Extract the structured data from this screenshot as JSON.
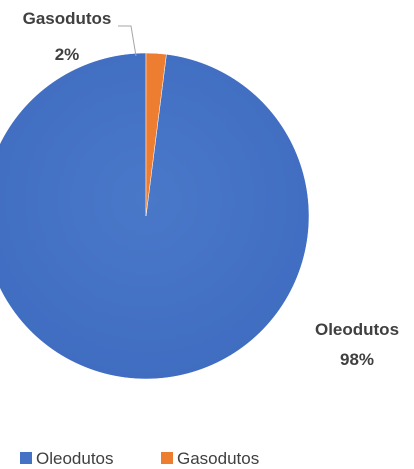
{
  "chart_data": {
    "type": "pie",
    "categories": [
      "Oleodutos",
      "Gasodutos"
    ],
    "values": [
      98,
      2
    ],
    "value_unit": "%",
    "colors": [
      "#4472C4",
      "#ED7D31"
    ],
    "data_labels": [
      {
        "name": "Oleodutos",
        "value": "98%"
      },
      {
        "name": "Gasodutos",
        "value": "2%"
      }
    ],
    "legend": {
      "position": "bottom",
      "entries": [
        "Oleodutos",
        "Gasodutos"
      ]
    },
    "title": ""
  }
}
